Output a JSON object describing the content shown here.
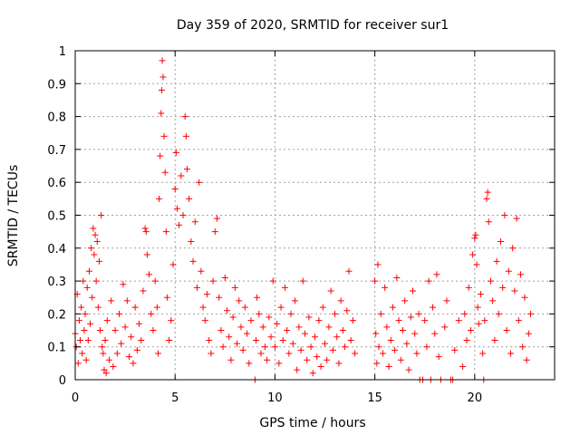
{
  "chart_data": {
    "type": "scatter",
    "title": "Day 359 of 2020, SRMTID for receiver sur1",
    "xlabel": "GPS time / hours",
    "ylabel": "SRMTID / TECUs",
    "xlim": [
      0,
      24
    ],
    "ylim": [
      0,
      1
    ],
    "xticks": [
      0,
      5,
      10,
      15,
      20
    ],
    "xtick_labels": [
      "0",
      "5",
      "10",
      "15",
      "20"
    ],
    "yticks": [
      0,
      0.1,
      0.2,
      0.3,
      0.4,
      0.5,
      0.6,
      0.7,
      0.8,
      0.9,
      1
    ],
    "ytick_labels": [
      "0",
      "0.1",
      "0.2",
      "0.3",
      "0.4",
      "0.5",
      "0.6",
      "0.7",
      "0.8",
      "0.9",
      "1"
    ],
    "grid": true,
    "marker": "+",
    "color": "#ff0000",
    "series": [
      {
        "name": "sur1",
        "points": [
          [
            0.0,
            0.14
          ],
          [
            0.05,
            0.1
          ],
          [
            0.1,
            0.26
          ],
          [
            0.15,
            0.05
          ],
          [
            0.2,
            0.18
          ],
          [
            0.25,
            0.12
          ],
          [
            0.3,
            0.22
          ],
          [
            0.35,
            0.08
          ],
          [
            0.4,
            0.3
          ],
          [
            0.45,
            0.15
          ],
          [
            0.5,
            0.2
          ],
          [
            0.55,
            0.06
          ],
          [
            0.6,
            0.28
          ],
          [
            0.65,
            0.12
          ],
          [
            0.7,
            0.33
          ],
          [
            0.75,
            0.17
          ],
          [
            0.8,
            0.4
          ],
          [
            0.85,
            0.25
          ],
          [
            0.9,
            0.46
          ],
          [
            0.95,
            0.38
          ],
          [
            1.0,
            0.44
          ],
          [
            1.05,
            0.3
          ],
          [
            1.1,
            0.42
          ],
          [
            1.15,
            0.22
          ],
          [
            1.2,
            0.36
          ],
          [
            1.25,
            0.15
          ],
          [
            1.3,
            0.5
          ],
          [
            1.35,
            0.1
          ],
          [
            1.4,
            0.08
          ],
          [
            1.45,
            0.03
          ],
          [
            1.5,
            0.12
          ],
          [
            1.55,
            0.02
          ],
          [
            1.6,
            0.18
          ],
          [
            1.7,
            0.06
          ],
          [
            1.8,
            0.24
          ],
          [
            1.9,
            0.04
          ],
          [
            2.0,
            0.15
          ],
          [
            2.1,
            0.08
          ],
          [
            2.2,
            0.2
          ],
          [
            2.3,
            0.11
          ],
          [
            2.4,
            0.29
          ],
          [
            2.5,
            0.16
          ],
          [
            2.6,
            0.24
          ],
          [
            2.7,
            0.07
          ],
          [
            2.8,
            0.13
          ],
          [
            2.9,
            0.05
          ],
          [
            3.0,
            0.22
          ],
          [
            3.1,
            0.09
          ],
          [
            3.2,
            0.17
          ],
          [
            3.3,
            0.12
          ],
          [
            3.4,
            0.27
          ],
          [
            3.5,
            0.46
          ],
          [
            3.55,
            0.45
          ],
          [
            3.6,
            0.38
          ],
          [
            3.7,
            0.32
          ],
          [
            3.8,
            0.2
          ],
          [
            3.9,
            0.15
          ],
          [
            4.0,
            0.3
          ],
          [
            4.1,
            0.22
          ],
          [
            4.15,
            0.08
          ],
          [
            4.2,
            0.55
          ],
          [
            4.25,
            0.68
          ],
          [
            4.3,
            0.81
          ],
          [
            4.33,
            0.88
          ],
          [
            4.36,
            0.97
          ],
          [
            4.4,
            0.92
          ],
          [
            4.45,
            0.74
          ],
          [
            4.5,
            0.63
          ],
          [
            4.55,
            0.45
          ],
          [
            4.6,
            0.25
          ],
          [
            4.7,
            0.12
          ],
          [
            4.8,
            0.18
          ],
          [
            4.9,
            0.35
          ],
          [
            5.0,
            0.58
          ],
          [
            5.05,
            0.69
          ],
          [
            5.1,
            0.52
          ],
          [
            5.2,
            0.47
          ],
          [
            5.3,
            0.62
          ],
          [
            5.4,
            0.5
          ],
          [
            5.5,
            0.8
          ],
          [
            5.55,
            0.74
          ],
          [
            5.6,
            0.64
          ],
          [
            5.7,
            0.55
          ],
          [
            5.8,
            0.42
          ],
          [
            5.9,
            0.36
          ],
          [
            6.0,
            0.48
          ],
          [
            6.1,
            0.28
          ],
          [
            6.2,
            0.6
          ],
          [
            6.3,
            0.33
          ],
          [
            6.4,
            0.22
          ],
          [
            6.5,
            0.18
          ],
          [
            6.6,
            0.26
          ],
          [
            6.7,
            0.12
          ],
          [
            6.8,
            0.08
          ],
          [
            6.9,
            0.3
          ],
          [
            7.0,
            0.45
          ],
          [
            7.1,
            0.49
          ],
          [
            7.2,
            0.25
          ],
          [
            7.3,
            0.15
          ],
          [
            7.4,
            0.1
          ],
          [
            7.5,
            0.31
          ],
          [
            7.6,
            0.21
          ],
          [
            7.7,
            0.13
          ],
          [
            7.8,
            0.06
          ],
          [
            7.9,
            0.19
          ],
          [
            8.0,
            0.28
          ],
          [
            8.1,
            0.11
          ],
          [
            8.2,
            0.24
          ],
          [
            8.3,
            0.16
          ],
          [
            8.4,
            0.09
          ],
          [
            8.5,
            0.22
          ],
          [
            8.6,
            0.14
          ],
          [
            8.7,
            0.05
          ],
          [
            8.8,
            0.18
          ],
          [
            9.0,
            0.0
          ],
          [
            9.05,
            0.12
          ],
          [
            9.1,
            0.25
          ],
          [
            9.2,
            0.2
          ],
          [
            9.3,
            0.08
          ],
          [
            9.4,
            0.16
          ],
          [
            9.5,
            0.1
          ],
          [
            9.6,
            0.06
          ],
          [
            9.7,
            0.19
          ],
          [
            9.8,
            0.13
          ],
          [
            9.9,
            0.3
          ],
          [
            10.0,
            0.1
          ],
          [
            10.1,
            0.17
          ],
          [
            10.2,
            0.05
          ],
          [
            10.3,
            0.22
          ],
          [
            10.4,
            0.12
          ],
          [
            10.5,
            0.28
          ],
          [
            10.6,
            0.15
          ],
          [
            10.7,
            0.08
          ],
          [
            10.8,
            0.2
          ],
          [
            10.9,
            0.11
          ],
          [
            11.0,
            0.24
          ],
          [
            11.1,
            0.03
          ],
          [
            11.2,
            0.16
          ],
          [
            11.3,
            0.09
          ],
          [
            11.4,
            0.3
          ],
          [
            11.5,
            0.14
          ],
          [
            11.6,
            0.06
          ],
          [
            11.7,
            0.19
          ],
          [
            11.8,
            0.1
          ],
          [
            11.9,
            0.02
          ],
          [
            12.0,
            0.13
          ],
          [
            12.1,
            0.07
          ],
          [
            12.2,
            0.18
          ],
          [
            12.3,
            0.04
          ],
          [
            12.4,
            0.22
          ],
          [
            12.5,
            0.11
          ],
          [
            12.6,
            0.06
          ],
          [
            12.7,
            0.16
          ],
          [
            12.8,
            0.27
          ],
          [
            12.9,
            0.09
          ],
          [
            13.0,
            0.2
          ],
          [
            13.1,
            0.13
          ],
          [
            13.2,
            0.05
          ],
          [
            13.3,
            0.24
          ],
          [
            13.4,
            0.15
          ],
          [
            13.5,
            0.1
          ],
          [
            13.6,
            0.21
          ],
          [
            13.7,
            0.33
          ],
          [
            13.8,
            0.12
          ],
          [
            13.9,
            0.18
          ],
          [
            14.0,
            0.08
          ],
          [
            15.0,
            0.3
          ],
          [
            15.05,
            0.14
          ],
          [
            15.1,
            0.05
          ],
          [
            15.15,
            0.35
          ],
          [
            15.2,
            0.1
          ],
          [
            15.3,
            0.2
          ],
          [
            15.4,
            0.08
          ],
          [
            15.5,
            0.28
          ],
          [
            15.6,
            0.16
          ],
          [
            15.7,
            0.04
          ],
          [
            15.8,
            0.12
          ],
          [
            15.9,
            0.22
          ],
          [
            16.0,
            0.09
          ],
          [
            16.1,
            0.31
          ],
          [
            16.2,
            0.18
          ],
          [
            16.3,
            0.06
          ],
          [
            16.4,
            0.15
          ],
          [
            16.5,
            0.24
          ],
          [
            16.6,
            0.11
          ],
          [
            16.7,
            0.03
          ],
          [
            16.8,
            0.19
          ],
          [
            16.9,
            0.27
          ],
          [
            17.0,
            0.14
          ],
          [
            17.1,
            0.08
          ],
          [
            17.2,
            0.2
          ],
          [
            17.25,
            0.0
          ],
          [
            17.4,
            0.0
          ],
          [
            17.5,
            0.18
          ],
          [
            17.6,
            0.1
          ],
          [
            17.7,
            0.3
          ],
          [
            17.8,
            0.0
          ],
          [
            17.9,
            0.22
          ],
          [
            18.0,
            0.14
          ],
          [
            18.1,
            0.32
          ],
          [
            18.2,
            0.07
          ],
          [
            18.3,
            0.0
          ],
          [
            18.5,
            0.16
          ],
          [
            18.6,
            0.24
          ],
          [
            18.8,
            0.0
          ],
          [
            18.9,
            0.0
          ],
          [
            19.0,
            0.09
          ],
          [
            19.2,
            0.18
          ],
          [
            19.4,
            0.04
          ],
          [
            19.5,
            0.2
          ],
          [
            19.6,
            0.12
          ],
          [
            19.7,
            0.28
          ],
          [
            19.8,
            0.15
          ],
          [
            19.9,
            0.38
          ],
          [
            20.0,
            0.43
          ],
          [
            20.05,
            0.44
          ],
          [
            20.1,
            0.35
          ],
          [
            20.15,
            0.22
          ],
          [
            20.2,
            0.17
          ],
          [
            20.3,
            0.26
          ],
          [
            20.4,
            0.08
          ],
          [
            20.45,
            0.0
          ],
          [
            20.5,
            0.18
          ],
          [
            20.6,
            0.55
          ],
          [
            20.65,
            0.57
          ],
          [
            20.7,
            0.48
          ],
          [
            20.8,
            0.3
          ],
          [
            20.9,
            0.24
          ],
          [
            21.0,
            0.12
          ],
          [
            21.1,
            0.36
          ],
          [
            21.2,
            0.2
          ],
          [
            21.3,
            0.42
          ],
          [
            21.4,
            0.28
          ],
          [
            21.5,
            0.5
          ],
          [
            21.6,
            0.15
          ],
          [
            21.7,
            0.33
          ],
          [
            21.8,
            0.08
          ],
          [
            21.9,
            0.4
          ],
          [
            22.0,
            0.27
          ],
          [
            22.1,
            0.49
          ],
          [
            22.2,
            0.18
          ],
          [
            22.3,
            0.32
          ],
          [
            22.4,
            0.1
          ],
          [
            22.5,
            0.25
          ],
          [
            22.6,
            0.06
          ],
          [
            22.7,
            0.14
          ],
          [
            22.8,
            0.2
          ]
        ]
      }
    ]
  }
}
